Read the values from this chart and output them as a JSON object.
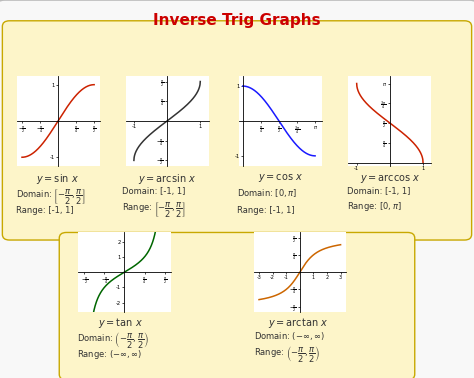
{
  "title": "Inverse Trig Graphs",
  "title_color": "#cc0000",
  "title_fontsize": 11,
  "bg_outer": "#ebebeb",
  "bg_box": "#fdf5c9",
  "box_edge": "#c8a800",
  "graphs": [
    {
      "func": "sin",
      "color": "#cc2200"
    },
    {
      "func": "arcsin",
      "color": "#333333"
    },
    {
      "func": "cos",
      "color": "#1a1aff"
    },
    {
      "func": "arccos",
      "color": "#cc2200"
    },
    {
      "func": "tan",
      "color": "#006600"
    },
    {
      "func": "arctan",
      "color": "#cc6600"
    }
  ],
  "text_color": "#333333",
  "label_fontsize": 7,
  "body_fontsize": 6
}
